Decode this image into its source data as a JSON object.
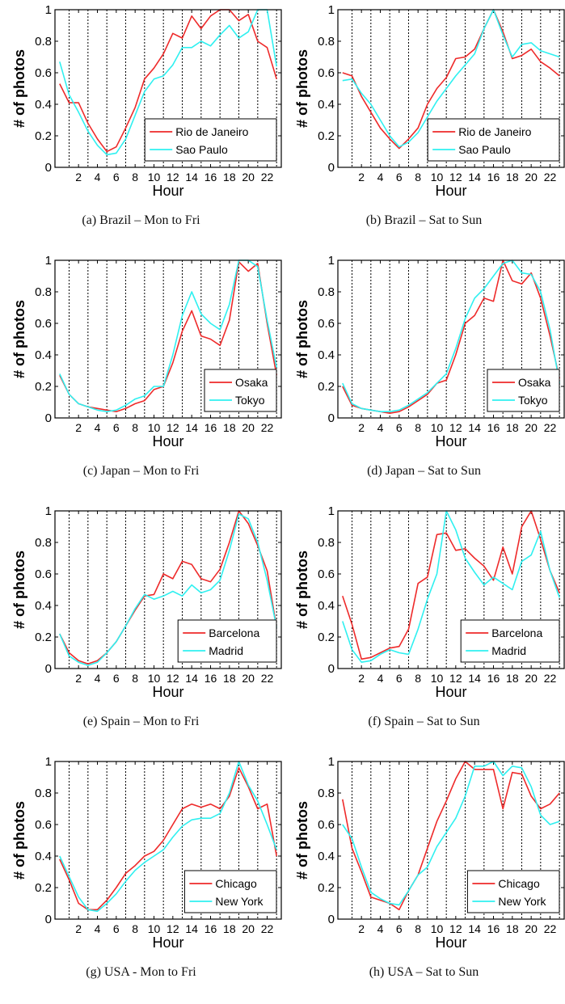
{
  "colors": {
    "red": "#ee2a2a",
    "cyan": "#2ff0f0",
    "axis": "#000000"
  },
  "chart_data": [
    {
      "type": "line",
      "caption": "(a) Brazil – Mon to Fri",
      "xlabel": "Hour",
      "ylabel": "# of photos",
      "xlim": [
        0,
        23
      ],
      "ylim": [
        0,
        1
      ],
      "legend": "lower-right",
      "x": [
        0,
        1,
        2,
        3,
        4,
        5,
        6,
        7,
        8,
        9,
        10,
        11,
        12,
        13,
        14,
        15,
        16,
        17,
        18,
        19,
        20,
        21,
        22,
        23
      ],
      "series": [
        {
          "name": "Rio de Janeiro",
          "color": "red",
          "values": [
            0.53,
            0.41,
            0.41,
            0.28,
            0.18,
            0.1,
            0.13,
            0.25,
            0.38,
            0.56,
            0.63,
            0.72,
            0.85,
            0.82,
            0.96,
            0.88,
            0.96,
            1.0,
            1.0,
            0.93,
            0.97,
            0.8,
            0.76,
            0.56
          ]
        },
        {
          "name": "Sao Paulo",
          "color": "cyan",
          "values": [
            0.67,
            0.46,
            0.35,
            0.23,
            0.14,
            0.08,
            0.09,
            0.18,
            0.33,
            0.48,
            0.56,
            0.58,
            0.65,
            0.76,
            0.76,
            0.8,
            0.77,
            0.84,
            0.9,
            0.82,
            0.86,
            1.0,
            1.0,
            0.64
          ]
        }
      ]
    },
    {
      "type": "line",
      "caption": "(b) Brazil – Sat to Sun",
      "xlabel": "Hour",
      "ylabel": "# of photos",
      "xlim": [
        0,
        23
      ],
      "ylim": [
        0,
        1
      ],
      "legend": "lower-right",
      "x": [
        0,
        1,
        2,
        3,
        4,
        5,
        6,
        7,
        8,
        9,
        10,
        11,
        12,
        13,
        14,
        15,
        16,
        17,
        18,
        19,
        20,
        21,
        22,
        23
      ],
      "series": [
        {
          "name": "Rio de Janeiro",
          "color": "red",
          "values": [
            0.6,
            0.58,
            0.45,
            0.35,
            0.25,
            0.18,
            0.12,
            0.18,
            0.25,
            0.4,
            0.5,
            0.57,
            0.69,
            0.7,
            0.75,
            0.88,
            1.0,
            0.86,
            0.69,
            0.71,
            0.75,
            0.67,
            0.63,
            0.58
          ]
        },
        {
          "name": "Sao Paulo",
          "color": "cyan",
          "values": [
            0.55,
            0.56,
            0.47,
            0.4,
            0.3,
            0.2,
            0.13,
            0.16,
            0.22,
            0.32,
            0.42,
            0.5,
            0.58,
            0.65,
            0.72,
            0.88,
            1.0,
            0.84,
            0.7,
            0.78,
            0.79,
            0.74,
            0.72,
            0.7
          ]
        }
      ]
    },
    {
      "type": "line",
      "caption": "(c) Japan – Mon to Fri",
      "xlabel": "Hour",
      "ylabel": "# of photos",
      "xlim": [
        0,
        23
      ],
      "ylim": [
        0,
        1
      ],
      "legend": "lower-right",
      "x": [
        0,
        1,
        2,
        3,
        4,
        5,
        6,
        7,
        8,
        9,
        10,
        11,
        12,
        13,
        14,
        15,
        16,
        17,
        18,
        19,
        20,
        21,
        22,
        23
      ],
      "series": [
        {
          "name": "Osaka",
          "color": "red",
          "values": [
            0.27,
            0.15,
            0.09,
            0.07,
            0.06,
            0.05,
            0.04,
            0.06,
            0.09,
            0.11,
            0.18,
            0.2,
            0.35,
            0.55,
            0.68,
            0.52,
            0.5,
            0.46,
            0.62,
            0.99,
            0.93,
            0.98,
            0.6,
            0.27
          ]
        },
        {
          "name": "Tokyo",
          "color": "cyan",
          "values": [
            0.28,
            0.15,
            0.09,
            0.07,
            0.05,
            0.04,
            0.05,
            0.08,
            0.12,
            0.14,
            0.2,
            0.2,
            0.4,
            0.65,
            0.8,
            0.66,
            0.6,
            0.56,
            0.72,
            1.0,
            1.0,
            0.96,
            0.62,
            0.32
          ]
        }
      ]
    },
    {
      "type": "line",
      "caption": "(d) Japan – Sat to Sun",
      "xlabel": "Hour",
      "ylabel": "# of photos",
      "xlim": [
        0,
        23
      ],
      "ylim": [
        0,
        1
      ],
      "legend": "lower-right",
      "x": [
        0,
        1,
        2,
        3,
        4,
        5,
        6,
        7,
        8,
        9,
        10,
        11,
        12,
        13,
        14,
        15,
        16,
        17,
        18,
        19,
        20,
        21,
        22,
        23
      ],
      "series": [
        {
          "name": "Osaka",
          "color": "red",
          "values": [
            0.2,
            0.08,
            0.06,
            0.05,
            0.04,
            0.03,
            0.04,
            0.07,
            0.11,
            0.15,
            0.22,
            0.24,
            0.4,
            0.6,
            0.65,
            0.76,
            0.74,
            1.0,
            0.87,
            0.85,
            0.92,
            0.76,
            0.52,
            0.25
          ]
        },
        {
          "name": "Tokyo",
          "color": "cyan",
          "values": [
            0.22,
            0.09,
            0.06,
            0.05,
            0.04,
            0.04,
            0.05,
            0.08,
            0.12,
            0.16,
            0.22,
            0.28,
            0.44,
            0.63,
            0.76,
            0.82,
            0.9,
            0.98,
            1.0,
            0.92,
            0.91,
            0.8,
            0.56,
            0.22
          ]
        }
      ]
    },
    {
      "type": "line",
      "caption": "(e) Spain – Mon to Fri",
      "xlabel": "Hour",
      "ylabel": "# of photos",
      "xlim": [
        0,
        23
      ],
      "ylim": [
        0,
        1
      ],
      "legend": "lower-right",
      "x": [
        0,
        1,
        2,
        3,
        4,
        5,
        6,
        7,
        8,
        9,
        10,
        11,
        12,
        13,
        14,
        15,
        16,
        17,
        18,
        19,
        20,
        21,
        22,
        23
      ],
      "series": [
        {
          "name": "Barcelona",
          "color": "red",
          "values": [
            0.22,
            0.1,
            0.05,
            0.03,
            0.05,
            0.1,
            0.17,
            0.27,
            0.37,
            0.46,
            0.47,
            0.6,
            0.57,
            0.68,
            0.66,
            0.57,
            0.55,
            0.63,
            0.8,
            1.0,
            0.92,
            0.78,
            0.62,
            0.26
          ]
        },
        {
          "name": "Madrid",
          "color": "cyan",
          "values": [
            0.22,
            0.08,
            0.04,
            0.02,
            0.04,
            0.1,
            0.17,
            0.27,
            0.38,
            0.47,
            0.44,
            0.46,
            0.49,
            0.46,
            0.53,
            0.48,
            0.5,
            0.56,
            0.75,
            0.98,
            0.95,
            0.8,
            0.56,
            0.26
          ]
        }
      ]
    },
    {
      "type": "line",
      "caption": "(f) Spain – Sat to Sun",
      "xlabel": "Hour",
      "ylabel": "# of photos",
      "xlim": [
        0,
        23
      ],
      "ylim": [
        0,
        1
      ],
      "legend": "lower-right",
      "x": [
        0,
        1,
        2,
        3,
        4,
        5,
        6,
        7,
        8,
        9,
        10,
        11,
        12,
        13,
        14,
        15,
        16,
        17,
        18,
        19,
        20,
        21,
        22,
        23
      ],
      "series": [
        {
          "name": "Barcelona",
          "color": "red",
          "values": [
            0.46,
            0.28,
            0.06,
            0.07,
            0.1,
            0.13,
            0.14,
            0.25,
            0.54,
            0.58,
            0.85,
            0.86,
            0.75,
            0.76,
            0.7,
            0.65,
            0.56,
            0.77,
            0.6,
            0.9,
            1.0,
            0.82,
            0.62,
            0.48
          ]
        },
        {
          "name": "Madrid",
          "color": "cyan",
          "values": [
            0.3,
            0.12,
            0.04,
            0.05,
            0.09,
            0.12,
            0.1,
            0.09,
            0.25,
            0.44,
            0.6,
            1.0,
            0.88,
            0.7,
            0.61,
            0.53,
            0.58,
            0.54,
            0.5,
            0.68,
            0.72,
            0.87,
            0.62,
            0.45
          ]
        }
      ]
    },
    {
      "type": "line",
      "caption": "(g) USA - Mon to Fri",
      "xlabel": "Hour",
      "ylabel": "# of photos",
      "xlim": [
        0,
        23
      ],
      "ylim": [
        0,
        1
      ],
      "legend": "lower-right",
      "x": [
        0,
        1,
        2,
        3,
        4,
        5,
        6,
        7,
        8,
        9,
        10,
        11,
        12,
        13,
        14,
        15,
        16,
        17,
        18,
        19,
        20,
        21,
        22,
        23
      ],
      "series": [
        {
          "name": "Chicago",
          "color": "red",
          "values": [
            0.38,
            0.25,
            0.1,
            0.06,
            0.06,
            0.12,
            0.2,
            0.29,
            0.34,
            0.4,
            0.43,
            0.5,
            0.6,
            0.7,
            0.73,
            0.71,
            0.73,
            0.7,
            0.78,
            0.96,
            0.84,
            0.7,
            0.73,
            0.4
          ]
        },
        {
          "name": "New York",
          "color": "cyan",
          "values": [
            0.4,
            0.27,
            0.14,
            0.06,
            0.05,
            0.1,
            0.16,
            0.24,
            0.31,
            0.36,
            0.4,
            0.44,
            0.52,
            0.59,
            0.63,
            0.64,
            0.64,
            0.67,
            0.8,
            1.0,
            0.85,
            0.75,
            0.6,
            0.44
          ]
        }
      ]
    },
    {
      "type": "line",
      "caption": "(h) USA – Sat to Sun",
      "xlabel": "Hour",
      "ylabel": "# of photos",
      "xlim": [
        0,
        23
      ],
      "ylim": [
        0,
        1
      ],
      "legend": "lower-right",
      "x": [
        0,
        1,
        2,
        3,
        4,
        5,
        6,
        7,
        8,
        9,
        10,
        11,
        12,
        13,
        14,
        15,
        16,
        17,
        18,
        19,
        20,
        21,
        22,
        23
      ],
      "series": [
        {
          "name": "Chicago",
          "color": "red",
          "values": [
            0.76,
            0.45,
            0.3,
            0.14,
            0.12,
            0.1,
            0.06,
            0.18,
            0.28,
            0.45,
            0.62,
            0.75,
            0.89,
            1.0,
            0.95,
            0.95,
            0.95,
            0.7,
            0.93,
            0.92,
            0.78,
            0.7,
            0.73,
            0.8
          ]
        },
        {
          "name": "New York",
          "color": "cyan",
          "values": [
            0.6,
            0.51,
            0.33,
            0.17,
            0.13,
            0.1,
            0.09,
            0.18,
            0.28,
            0.33,
            0.46,
            0.55,
            0.64,
            0.78,
            0.97,
            0.97,
            1.0,
            0.91,
            0.97,
            0.96,
            0.84,
            0.66,
            0.6,
            0.62
          ]
        }
      ]
    }
  ]
}
